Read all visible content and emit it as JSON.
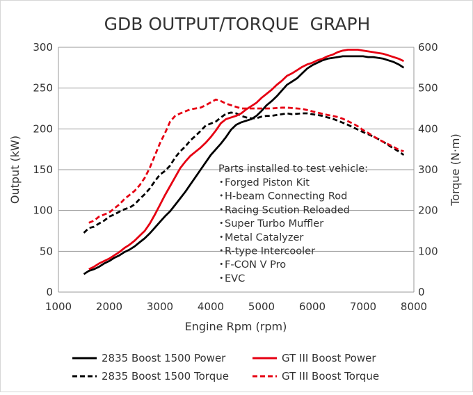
{
  "chart_data": {
    "type": "line",
    "title": "GDB OUTPUT/TORQUE  GRAPH",
    "xlabel": "Engine Rpm (rpm)",
    "ylabel": "Output (kW)",
    "y2label": "Torque (N·m)",
    "xlim": [
      1000,
      8000
    ],
    "ylim": [
      0,
      300
    ],
    "y2lim": [
      0,
      600
    ],
    "xticks": [
      "1000",
      "2000",
      "3000",
      "4000",
      "5000",
      "6000",
      "7000",
      "8000"
    ],
    "yticks": [
      "0",
      "50",
      "100",
      "150",
      "200",
      "250",
      "300"
    ],
    "y2ticks": [
      "0",
      "100",
      "200",
      "300",
      "400",
      "500",
      "600"
    ],
    "grid": "horizontal",
    "legend_position": "bottom",
    "annotation": {
      "heading": "Parts installed to test vehicle:",
      "bullet": "・",
      "items": [
        "Forged Piston Kit",
        "H-beam Connecting Rod",
        "Racing Scution Reloaded",
        "Super Turbo Muffler",
        "Metal Catalyzer",
        "R-type Intercooler",
        "F-CON V Pro",
        "EVC"
      ]
    },
    "series": [
      {
        "name": "2835 Boost 1500 Power",
        "axis": "left",
        "color": "#000000",
        "dash": "solid",
        "x": [
          1500,
          1600,
          1700,
          1800,
          1900,
          2000,
          2100,
          2200,
          2300,
          2400,
          2500,
          2600,
          2700,
          2800,
          2900,
          3000,
          3100,
          3200,
          3300,
          3400,
          3500,
          3600,
          3700,
          3800,
          3900,
          4000,
          4100,
          4200,
          4300,
          4400,
          4500,
          4600,
          4700,
          4800,
          4900,
          5000,
          5100,
          5200,
          5300,
          5400,
          5500,
          5600,
          5700,
          5800,
          5900,
          6000,
          6100,
          6200,
          6300,
          6400,
          6500,
          6600,
          6700,
          6800,
          6900,
          7000,
          7100,
          7200,
          7300,
          7400,
          7500,
          7600,
          7700,
          7800
        ],
        "values": [
          22,
          26,
          28,
          31,
          35,
          38,
          42,
          45,
          49,
          52,
          56,
          61,
          66,
          72,
          79,
          86,
          93,
          99,
          107,
          115,
          123,
          132,
          141,
          150,
          159,
          168,
          175,
          182,
          190,
          199,
          205,
          208,
          210,
          212,
          216,
          222,
          229,
          234,
          240,
          247,
          254,
          258,
          262,
          268,
          274,
          278,
          281,
          284,
          286,
          287,
          288,
          289,
          289,
          289,
          289,
          289,
          288,
          288,
          287,
          286,
          284,
          282,
          279,
          275
        ]
      },
      {
        "name": "GT III Boost Power",
        "axis": "left",
        "color": "#e60012",
        "dash": "solid",
        "x": [
          1600,
          1700,
          1800,
          1900,
          2000,
          2100,
          2200,
          2300,
          2400,
          2500,
          2600,
          2700,
          2800,
          2900,
          3000,
          3100,
          3200,
          3300,
          3400,
          3500,
          3600,
          3700,
          3800,
          3900,
          4000,
          4100,
          4200,
          4300,
          4400,
          4500,
          4600,
          4700,
          4800,
          4900,
          5000,
          5100,
          5200,
          5300,
          5400,
          5500,
          5600,
          5700,
          5800,
          5900,
          6000,
          6100,
          6200,
          6300,
          6400,
          6500,
          6600,
          6700,
          6800,
          6900,
          7000,
          7100,
          7200,
          7300,
          7400,
          7500,
          7600,
          7700,
          7800
        ],
        "values": [
          28,
          31,
          35,
          38,
          41,
          45,
          49,
          54,
          58,
          63,
          69,
          75,
          84,
          95,
          107,
          119,
          130,
          141,
          152,
          160,
          167,
          172,
          177,
          183,
          190,
          198,
          207,
          212,
          214,
          216,
          219,
          224,
          228,
          232,
          238,
          243,
          248,
          254,
          259,
          265,
          268,
          272,
          276,
          279,
          281,
          284,
          286,
          289,
          291,
          294,
          296,
          297,
          297,
          297,
          296,
          295,
          294,
          293,
          292,
          290,
          288,
          286,
          283
        ]
      },
      {
        "name": "2835 Boost 1500 Torque",
        "axis": "right",
        "color": "#000000",
        "dash": "dashed",
        "x": [
          1500,
          1600,
          1700,
          1800,
          1900,
          2000,
          2100,
          2200,
          2300,
          2400,
          2500,
          2600,
          2700,
          2800,
          2900,
          3000,
          3100,
          3200,
          3300,
          3400,
          3500,
          3600,
          3700,
          3800,
          3900,
          4000,
          4100,
          4200,
          4300,
          4400,
          4500,
          4600,
          4700,
          4800,
          4900,
          5000,
          5100,
          5200,
          5300,
          5400,
          5500,
          5600,
          5700,
          5800,
          5900,
          6000,
          6100,
          6200,
          6300,
          6400,
          6500,
          6600,
          6700,
          6800,
          6900,
          7000,
          7100,
          7200,
          7300,
          7400,
          7500,
          7600,
          7700,
          7800
        ],
        "values": [
          145,
          157,
          160,
          168,
          175,
          185,
          190,
          197,
          203,
          207,
          215,
          228,
          240,
          254,
          272,
          288,
          297,
          310,
          330,
          345,
          357,
          372,
          383,
          395,
          408,
          413,
          418,
          428,
          437,
          440,
          438,
          432,
          428,
          426,
          426,
          430,
          432,
          432,
          434,
          436,
          438,
          436,
          437,
          438,
          438,
          436,
          434,
          432,
          428,
          425,
          420,
          415,
          410,
          404,
          398,
          392,
          387,
          381,
          375,
          368,
          360,
          352,
          345,
          336
        ]
      },
      {
        "name": "GT III Boost Torque",
        "axis": "right",
        "color": "#e60012",
        "dash": "dashed",
        "x": [
          1600,
          1700,
          1800,
          1900,
          2000,
          2100,
          2200,
          2300,
          2400,
          2500,
          2600,
          2700,
          2800,
          2900,
          3000,
          3100,
          3200,
          3300,
          3400,
          3500,
          3600,
          3700,
          3800,
          3900,
          4000,
          4100,
          4200,
          4300,
          4400,
          4500,
          4600,
          4700,
          4800,
          4900,
          5000,
          5100,
          5200,
          5300,
          5400,
          5500,
          5600,
          5700,
          5800,
          5900,
          6000,
          6100,
          6200,
          6300,
          6400,
          6500,
          6600,
          6700,
          6800,
          6900,
          7000,
          7100,
          7200,
          7300,
          7400,
          7500,
          7600,
          7700,
          7800
        ],
        "values": [
          170,
          175,
          185,
          190,
          195,
          205,
          215,
          228,
          238,
          248,
          262,
          280,
          305,
          335,
          365,
          390,
          418,
          432,
          438,
          443,
          448,
          450,
          452,
          458,
          465,
          472,
          468,
          462,
          458,
          454,
          450,
          450,
          450,
          450,
          450,
          450,
          450,
          451,
          452,
          452,
          451,
          450,
          449,
          446,
          443,
          440,
          437,
          434,
          432,
          429,
          425,
          419,
          413,
          406,
          397,
          390,
          382,
          375,
          368,
          362,
          356,
          349,
          345
        ]
      }
    ]
  }
}
